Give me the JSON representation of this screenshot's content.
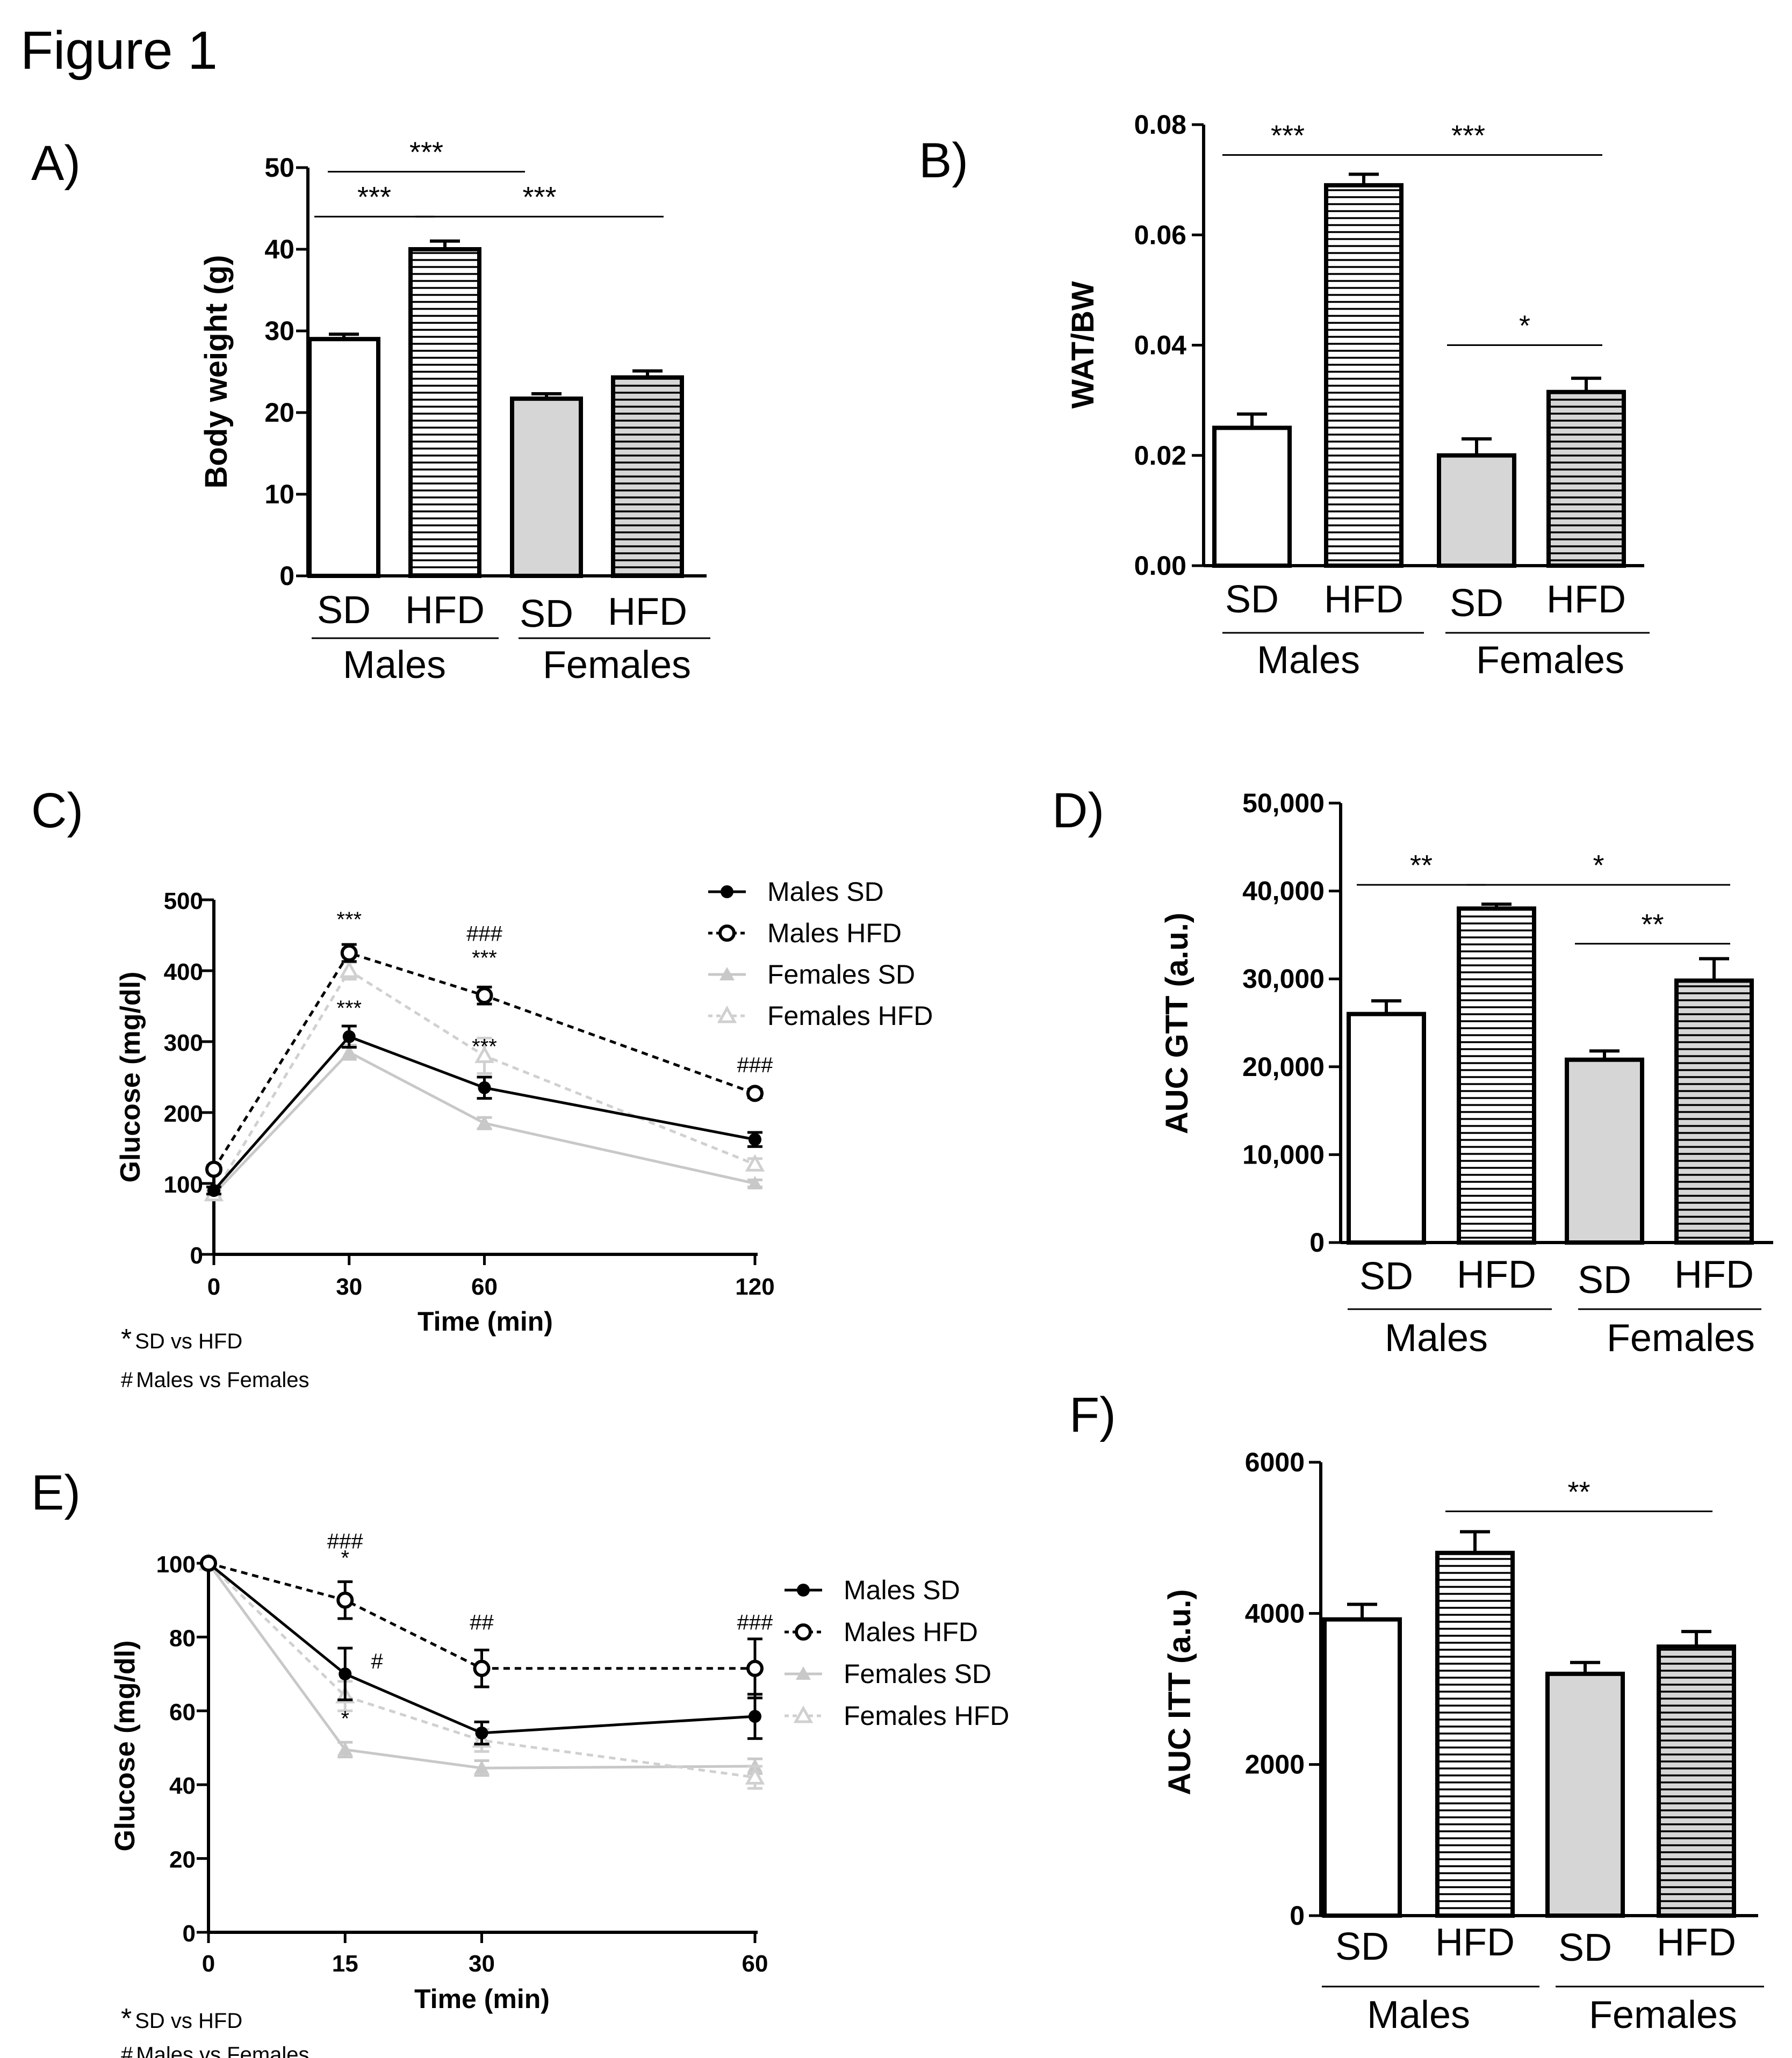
{
  "figure_title": "Figure 1",
  "colors": {
    "sd_bar": "#ffffff",
    "female_bar": "#d6d6d6",
    "male_line": "#000000",
    "female_line": "#c8c8c8",
    "hatch": "#000000"
  },
  "chart_data": [
    {
      "panel": "A)",
      "type": "bar",
      "ylabel": "Body weight (g)",
      "ylim": [
        0,
        50
      ],
      "yticks": [
        "0",
        "10",
        "20",
        "30",
        "40",
        "50"
      ],
      "categories": [
        "SD",
        "HFD",
        "SD",
        "HFD"
      ],
      "groups": [
        "Males",
        "Females"
      ],
      "values": [
        29,
        40,
        21.7,
        24.3
      ],
      "errors": [
        0.6,
        1.0,
        0.6,
        0.8
      ],
      "significance": [
        {
          "label": "***",
          "from": 0,
          "to": 1,
          "level": 44
        },
        {
          "label": "***",
          "from": 0,
          "to": 2,
          "level": 49.5
        },
        {
          "label": "***",
          "from": 1,
          "to": 3,
          "level": 44
        }
      ]
    },
    {
      "panel": "B)",
      "type": "bar",
      "ylabel": "WAT/BW",
      "ylim": [
        0,
        0.08
      ],
      "yticks": [
        "0.00",
        "0.02",
        "0.04",
        "0.06",
        "0.08"
      ],
      "categories": [
        "SD",
        "HFD",
        "SD",
        "HFD"
      ],
      "groups": [
        "Males",
        "Females"
      ],
      "values": [
        0.025,
        0.069,
        0.02,
        0.0315
      ],
      "errors": [
        0.0025,
        0.002,
        0.003,
        0.0025
      ],
      "significance": [
        {
          "label": "***",
          "from": 0,
          "to": 1,
          "level": 0.0745
        },
        {
          "label": "***",
          "from": 1,
          "to": 3,
          "level": 0.0745
        },
        {
          "label": "*",
          "from": 2,
          "to": 3,
          "level": 0.04
        }
      ]
    },
    {
      "panel": "C)",
      "type": "line",
      "xlabel": "Time (min)",
      "ylabel": "Glucose (mg/dl)",
      "x": [
        0,
        30,
        60,
        120
      ],
      "xticks": [
        "0",
        "30",
        "60",
        "120"
      ],
      "ylim": [
        0,
        500
      ],
      "yticks": [
        "0",
        "100",
        "200",
        "300",
        "400",
        "500"
      ],
      "series": [
        {
          "name": "Males SD",
          "values": [
            90,
            307,
            235,
            162
          ],
          "errors": [
            5,
            15,
            15,
            10
          ]
        },
        {
          "name": "Males HFD",
          "values": [
            120,
            425,
            365,
            227
          ],
          "errors": [
            5,
            12,
            12,
            6
          ]
        },
        {
          "name": "Females SD",
          "values": [
            85,
            285,
            185,
            100
          ],
          "errors": [
            5,
            10,
            8,
            5
          ]
        },
        {
          "name": "Females HFD",
          "values": [
            85,
            400,
            280,
            127
          ],
          "errors": [
            5,
            12,
            25,
            8
          ]
        }
      ],
      "annotations": [
        {
          "text": "***",
          "x": 30,
          "y": 462
        },
        {
          "text": "###",
          "x": 60,
          "y": 442
        },
        {
          "text": "***",
          "x": 60,
          "y": 408
        },
        {
          "text": "***",
          "x": 30,
          "y": 337
        },
        {
          "text": "***",
          "x": 60,
          "y": 283
        },
        {
          "text": "###",
          "x": 120,
          "y": 257
        }
      ],
      "notes": [
        {
          "symbol": "*",
          "text": "SD vs HFD"
        },
        {
          "symbol": "#",
          "text": "Males vs Females"
        }
      ]
    },
    {
      "panel": "D)",
      "type": "bar",
      "ylabel": "AUC GTT  (a.u.)",
      "ylim": [
        0,
        50000
      ],
      "yticks": [
        "0",
        "10,000",
        "20,000",
        "30,000",
        "40,000",
        "50,000"
      ],
      "categories": [
        "SD",
        "HFD",
        "SD",
        "HFD"
      ],
      "groups": [
        "Males",
        "Females"
      ],
      "values": [
        26000,
        38000,
        20800,
        29800
      ],
      "errors": [
        1500,
        500,
        1000,
        2500
      ],
      "significance": [
        {
          "label": "**",
          "from": 0,
          "to": 1,
          "level": 40700
        },
        {
          "label": "*",
          "from": 1,
          "to": 3,
          "level": 40700
        },
        {
          "label": "**",
          "from": 2,
          "to": 3,
          "level": 34000
        }
      ]
    },
    {
      "panel": "E)",
      "type": "line",
      "xlabel": "Time (min)",
      "ylabel": "Glucose (mg/dl)",
      "x": [
        0,
        15,
        30,
        60
      ],
      "xticks": [
        "0",
        "15",
        "30",
        "60"
      ],
      "ylim": [
        0,
        100
      ],
      "yticks": [
        "0",
        "20",
        "40",
        "60",
        "80",
        "100"
      ],
      "series": [
        {
          "name": "Males SD",
          "values": [
            100,
            70,
            54,
            58.5
          ],
          "errors": [
            0,
            7,
            3,
            6
          ]
        },
        {
          "name": "Males HFD",
          "values": [
            100,
            90,
            71.5,
            71.5
          ],
          "errors": [
            0,
            5,
            5,
            8
          ]
        },
        {
          "name": "Females SD",
          "values": [
            100,
            49.5,
            44.5,
            45
          ],
          "errors": [
            0,
            2,
            2,
            2
          ]
        },
        {
          "name": "Females HFD",
          "values": [
            100,
            64,
            52,
            42
          ],
          "errors": [
            0,
            4,
            3,
            3
          ]
        }
      ],
      "annotations": [
        {
          "text": "###",
          "x": 15,
          "y": 104
        },
        {
          "text": "*",
          "x": 15,
          "y": 99.5
        },
        {
          "text": "##",
          "x": 30,
          "y": 82
        },
        {
          "text": "###",
          "x": 60,
          "y": 82
        },
        {
          "text": "#",
          "x": 18.5,
          "y": 71.5
        },
        {
          "text": "*",
          "x": 15,
          "y": 56
        }
      ],
      "notes": [
        {
          "symbol": "*",
          "text": "SD vs HFD"
        },
        {
          "symbol": "#",
          "text": "Males vs Females"
        }
      ]
    },
    {
      "panel": "F)",
      "type": "bar",
      "ylabel": "AUC ITT  (a.u.)",
      "ylim": [
        0,
        6000
      ],
      "yticks": [
        "0",
        "2000",
        "4000",
        "6000"
      ],
      "categories": [
        "SD",
        "HFD",
        "SD",
        "HFD"
      ],
      "groups": [
        "Males",
        "Females"
      ],
      "values": [
        3920,
        4800,
        3200,
        3560
      ],
      "errors": [
        200,
        280,
        150,
        200
      ],
      "significance": [
        {
          "label": "**",
          "from": 1,
          "to": 3,
          "level": 5350
        }
      ]
    }
  ]
}
